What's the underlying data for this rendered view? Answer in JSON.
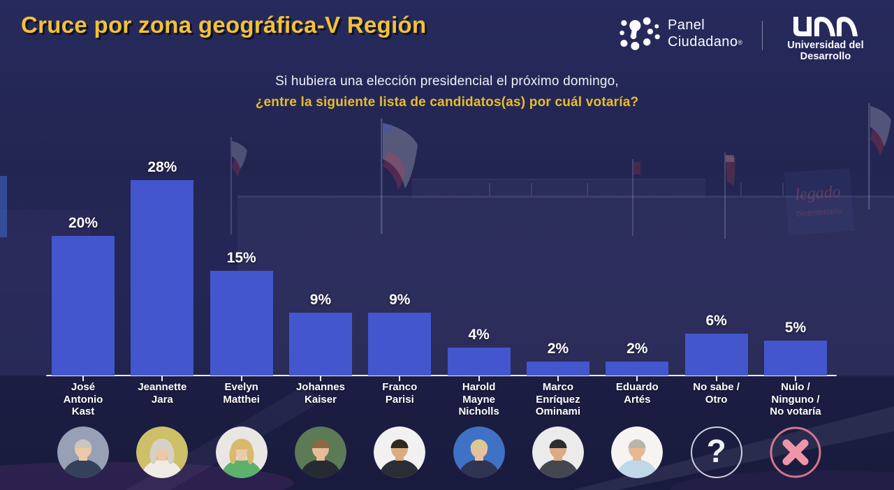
{
  "colors": {
    "background": "#232551",
    "bar_blue": "#4456cd",
    "accent_yellow": "#f2c233",
    "question_yellow": "#e8bd2b",
    "text_white": "#f0f1f6",
    "question_ring": "#cfd0dc",
    "cross_ring": "#d4768c",
    "cross_glyph": "#ee96a8"
  },
  "header": {
    "title": "Cruce por zona geográfica-V Región",
    "panel_logo": {
      "line1": "Panel",
      "line2": "Ciudadano",
      "registered": "®"
    },
    "udd_logo": {
      "acronym": "UDD",
      "name": "Universidad del Desarrollo"
    }
  },
  "question": {
    "line1": "Si hubiera una elección presidencial el próximo domingo,",
    "line2": "¿entre la siguiente lista de candidatos(as) por cuál votaría?"
  },
  "chart_data": {
    "type": "bar",
    "title": "Cruce por zona geográfica-V Región",
    "subtitle": "Si hubiera una elección presidencial el próximo domingo, ¿entre la siguiente lista de candidatos(as) por cuál votaría?",
    "unit": "%",
    "ylim": [
      0,
      30
    ],
    "grid": false,
    "legend": "none",
    "bar_color": "#4456cd",
    "categories": [
      "José Antonio Kast",
      "Jeannette Jara",
      "Evelyn Matthei",
      "Johannes Kaiser",
      "Franco Parisi",
      "Harold Mayne Nicholls",
      "Marco Enríquez Ominami",
      "Eduardo Artés",
      "No sabe / Otro",
      "Nulo / Ninguno / No votaría"
    ],
    "category_lines": [
      [
        "José",
        "Antonio",
        "Kast"
      ],
      [
        "Jeannette",
        "Jara"
      ],
      [
        "Evelyn",
        "Matthei"
      ],
      [
        "Johannes",
        "Kaiser"
      ],
      [
        "Franco",
        "Parisi"
      ],
      [
        "Harold",
        "Mayne",
        "Nicholls"
      ],
      [
        "Marco",
        "Enríquez",
        "Ominami"
      ],
      [
        "Eduardo",
        "Artés"
      ],
      [
        "No sabe /",
        "Otro"
      ],
      [
        "Nulo /",
        "Ninguno /",
        "No votaría"
      ]
    ],
    "values": [
      20,
      28,
      15,
      9,
      9,
      4,
      2,
      2,
      6,
      5
    ],
    "value_labels": [
      "20%",
      "28%",
      "15%",
      "9%",
      "9%",
      "4%",
      "2%",
      "2%",
      "6%",
      "5%"
    ]
  },
  "avatars": [
    {
      "name": "jose-antonio-kast-avatar",
      "kind": "photo",
      "person": "male",
      "bg": "#97a0b4",
      "hair": "#c9c6c0",
      "skin": "#ecc9a8",
      "top": "#33415a"
    },
    {
      "name": "jeannette-jara-avatar",
      "kind": "photo",
      "person": "female",
      "bg": "#cdc069",
      "hair": "#d6d0c6",
      "skin": "#eec8a6",
      "top": "#efece6"
    },
    {
      "name": "evelyn-matthei-avatar",
      "kind": "photo",
      "person": "female",
      "bg": "#e9e7e3",
      "hair": "#d9b96d",
      "skin": "#eec9a9",
      "top": "#5cb16d"
    },
    {
      "name": "johannes-kaiser-avatar",
      "kind": "photo",
      "person": "male",
      "bg": "#5b7a55",
      "hair": "#8a6844",
      "skin": "#e6bd98",
      "top": "#262b33"
    },
    {
      "name": "franco-parisi-avatar",
      "kind": "photo",
      "person": "male",
      "bg": "#f1f1f1",
      "hair": "#2e2924",
      "skin": "#dcab80",
      "top": "#2b2d35"
    },
    {
      "name": "harold-mayne-nicholls-avatar",
      "kind": "photo",
      "person": "male",
      "bg": "#3f72c4",
      "hair": "#d9c993",
      "skin": "#e9c09c",
      "top": "#2f3452"
    },
    {
      "name": "marco-enriquez-ominami-avatar",
      "kind": "photo",
      "person": "male",
      "bg": "#ebebec",
      "hair": "#2d2d31",
      "skin": "#dcab82",
      "top": "#44474f"
    },
    {
      "name": "eduardo-artes-avatar",
      "kind": "photo",
      "person": "male",
      "bg": "#f5f4f2",
      "hair": "#b9b4ac",
      "skin": "#e6b894",
      "top": "#bed8ea"
    },
    {
      "name": "no-sabe-avatar",
      "kind": "question",
      "glyph": "?"
    },
    {
      "name": "nulo-avatar",
      "kind": "cross"
    }
  ],
  "background_photo": {
    "sign_line1": "legado",
    "sign_line2": "bicentenario"
  }
}
